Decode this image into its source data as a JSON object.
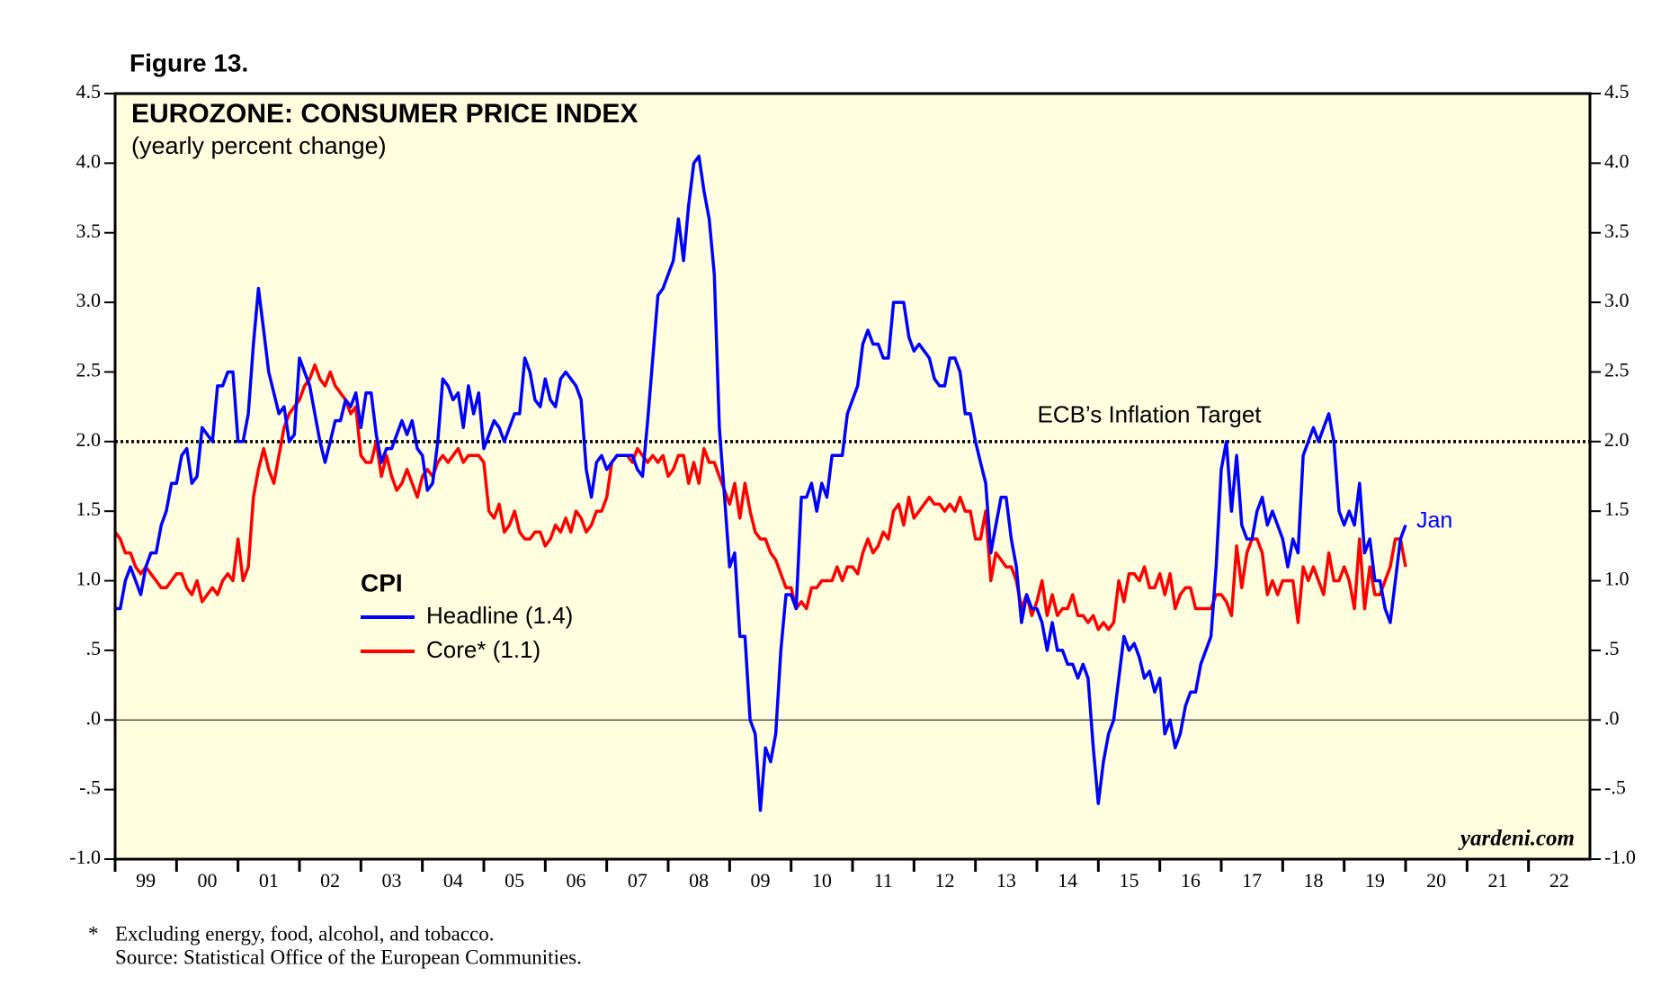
{
  "chart_data": {
    "type": "line",
    "figure_label": "Figure 13.",
    "title": "EUROZONE: CONSUMER PRICE INDEX",
    "subtitle": "(yearly percent change)",
    "legend_title": "CPI",
    "end_label": "Jan",
    "source_brand": "yardeni.com",
    "footnote_mark": "*",
    "footnotes": [
      "Excluding energy, food, alcohol, and tobacco.",
      "Source: Statistical Office of the European Communities."
    ],
    "target": {
      "value": 2,
      "label": "ECB’s Inflation Target"
    },
    "plot_background": "#ffffe0",
    "xlim": [
      1999,
      2023
    ],
    "xticks": [
      {
        "value": 1999,
        "label": "99"
      },
      {
        "value": 2000,
        "label": "00"
      },
      {
        "value": 2001,
        "label": "01"
      },
      {
        "value": 2002,
        "label": "02"
      },
      {
        "value": 2003,
        "label": "03"
      },
      {
        "value": 2004,
        "label": "04"
      },
      {
        "value": 2005,
        "label": "05"
      },
      {
        "value": 2006,
        "label": "06"
      },
      {
        "value": 2007,
        "label": "07"
      },
      {
        "value": 2008,
        "label": "08"
      },
      {
        "value": 2009,
        "label": "09"
      },
      {
        "value": 2010,
        "label": "10"
      },
      {
        "value": 2011,
        "label": "11"
      },
      {
        "value": 2012,
        "label": "12"
      },
      {
        "value": 2013,
        "label": "13"
      },
      {
        "value": 2014,
        "label": "14"
      },
      {
        "value": 2015,
        "label": "15"
      },
      {
        "value": 2016,
        "label": "16"
      },
      {
        "value": 2017,
        "label": "17"
      },
      {
        "value": 2018,
        "label": "18"
      },
      {
        "value": 2019,
        "label": "19"
      },
      {
        "value": 2020,
        "label": "20"
      },
      {
        "value": 2021,
        "label": "21"
      },
      {
        "value": 2022,
        "label": "22"
      }
    ],
    "ylim": [
      -1,
      4.5
    ],
    "yticks": [
      {
        "value": -1,
        "label": "-1.0"
      },
      {
        "value": -0.5,
        "label": "-.5"
      },
      {
        "value": 0,
        "label": ".0"
      },
      {
        "value": 0.5,
        "label": ".5"
      },
      {
        "value": 1,
        "label": "1.0"
      },
      1.5,
      {
        "value": 2,
        "label": "2.0"
      },
      2.5,
      {
        "value": 3,
        "label": "3.0"
      },
      3.5,
      {
        "value": 4,
        "label": "4.0"
      },
      4.5
    ],
    "x": [
      1999,
      1999.083,
      1999.167,
      1999.25,
      1999.333,
      1999.417,
      1999.5,
      1999.583,
      1999.667,
      1999.75,
      1999.833,
      1999.917,
      2000,
      2000.083,
      2000.167,
      2000.25,
      2000.333,
      2000.417,
      2000.5,
      2000.583,
      2000.667,
      2000.75,
      2000.833,
      2000.917,
      2001,
      2001.083,
      2001.167,
      2001.25,
      2001.333,
      2001.417,
      2001.5,
      2001.583,
      2001.667,
      2001.75,
      2001.833,
      2001.917,
      2002,
      2002.083,
      2002.167,
      2002.25,
      2002.333,
      2002.417,
      2002.5,
      2002.583,
      2002.667,
      2002.75,
      2002.833,
      2002.917,
      2003,
      2003.083,
      2003.167,
      2003.25,
      2003.333,
      2003.417,
      2003.5,
      2003.583,
      2003.667,
      2003.75,
      2003.833,
      2003.917,
      2004,
      2004.083,
      2004.167,
      2004.25,
      2004.333,
      2004.417,
      2004.5,
      2004.583,
      2004.667,
      2004.75,
      2004.833,
      2004.917,
      2005,
      2005.083,
      2005.167,
      2005.25,
      2005.333,
      2005.417,
      2005.5,
      2005.583,
      2005.667,
      2005.75,
      2005.833,
      2005.917,
      2006,
      2006.083,
      2006.167,
      2006.25,
      2006.333,
      2006.417,
      2006.5,
      2006.583,
      2006.667,
      2006.75,
      2006.833,
      2006.917,
      2007,
      2007.083,
      2007.167,
      2007.25,
      2007.333,
      2007.417,
      2007.5,
      2007.583,
      2007.667,
      2007.75,
      2007.833,
      2007.917,
      2008,
      2008.083,
      2008.167,
      2008.25,
      2008.333,
      2008.417,
      2008.5,
      2008.583,
      2008.667,
      2008.75,
      2008.833,
      2008.917,
      2009,
      2009.083,
      2009.167,
      2009.25,
      2009.333,
      2009.417,
      2009.5,
      2009.583,
      2009.667,
      2009.75,
      2009.833,
      2009.917,
      2010,
      2010.083,
      2010.167,
      2010.25,
      2010.333,
      2010.417,
      2010.5,
      2010.583,
      2010.667,
      2010.75,
      2010.833,
      2010.917,
      2011,
      2011.083,
      2011.167,
      2011.25,
      2011.333,
      2011.417,
      2011.5,
      2011.583,
      2011.667,
      2011.75,
      2011.833,
      2011.917,
      2012,
      2012.083,
      2012.167,
      2012.25,
      2012.333,
      2012.417,
      2012.5,
      2012.583,
      2012.667,
      2012.75,
      2012.833,
      2012.917,
      2013,
      2013.083,
      2013.167,
      2013.25,
      2013.333,
      2013.417,
      2013.5,
      2013.583,
      2013.667,
      2013.75,
      2013.833,
      2013.917,
      2014,
      2014.083,
      2014.167,
      2014.25,
      2014.333,
      2014.417,
      2014.5,
      2014.583,
      2014.667,
      2014.75,
      2014.833,
      2014.917,
      2015,
      2015.083,
      2015.167,
      2015.25,
      2015.333,
      2015.417,
      2015.5,
      2015.583,
      2015.667,
      2015.75,
      2015.833,
      2015.917,
      2016,
      2016.083,
      2016.167,
      2016.25,
      2016.333,
      2016.417,
      2016.5,
      2016.583,
      2016.667,
      2016.75,
      2016.833,
      2016.917,
      2017,
      2017.083,
      2017.167,
      2017.25,
      2017.333,
      2017.417,
      2017.5,
      2017.583,
      2017.667,
      2017.75,
      2017.833,
      2017.917,
      2018,
      2018.083,
      2018.167,
      2018.25,
      2018.333,
      2018.417,
      2018.5,
      2018.583,
      2018.667,
      2018.75,
      2018.833,
      2018.917,
      2019,
      2019.083,
      2019.167,
      2019.25,
      2019.333,
      2019.417,
      2019.5,
      2019.583,
      2019.667,
      2019.75,
      2019.833,
      2019.917,
      2020
    ],
    "series": [
      {
        "name": "Headline (1.4)",
        "color": "#0000ff",
        "values": [
          0.8,
          0.8,
          1.0,
          1.1,
          1.0,
          0.9,
          1.1,
          1.2,
          1.2,
          1.4,
          1.5,
          1.7,
          1.7,
          1.9,
          1.95,
          1.7,
          1.75,
          2.1,
          2.05,
          2.0,
          2.4,
          2.4,
          2.5,
          2.5,
          2.0,
          2.0,
          2.2,
          2.7,
          3.1,
          2.8,
          2.5,
          2.35,
          2.2,
          2.25,
          2.0,
          2.05,
          2.6,
          2.5,
          2.4,
          2.2,
          2.0,
          1.85,
          2.0,
          2.15,
          2.15,
          2.3,
          2.25,
          2.35,
          2.1,
          2.35,
          2.35,
          2.05,
          1.85,
          1.95,
          1.95,
          2.05,
          2.15,
          2.05,
          2.15,
          1.95,
          1.9,
          1.65,
          1.7,
          2.0,
          2.45,
          2.4,
          2.3,
          2.35,
          2.1,
          2.4,
          2.2,
          2.35,
          1.95,
          2.05,
          2.15,
          2.1,
          2.0,
          2.1,
          2.2,
          2.2,
          2.6,
          2.5,
          2.3,
          2.25,
          2.45,
          2.3,
          2.25,
          2.45,
          2.5,
          2.45,
          2.4,
          2.3,
          1.8,
          1.6,
          1.85,
          1.9,
          1.8,
          1.85,
          1.9,
          1.9,
          1.9,
          1.9,
          1.8,
          1.75,
          2.15,
          2.6,
          3.05,
          3.1,
          3.2,
          3.3,
          3.6,
          3.3,
          3.7,
          4.0,
          4.05,
          3.8,
          3.6,
          3.2,
          2.1,
          1.6,
          1.1,
          1.2,
          0.6,
          0.6,
          0.0,
          -0.1,
          -0.65,
          -0.2,
          -0.3,
          -0.1,
          0.5,
          0.9,
          0.9,
          0.8,
          1.6,
          1.6,
          1.7,
          1.5,
          1.7,
          1.6,
          1.9,
          1.9,
          1.9,
          2.2,
          2.3,
          2.4,
          2.7,
          2.8,
          2.7,
          2.7,
          2.6,
          2.6,
          3.0,
          3.0,
          3.0,
          2.75,
          2.65,
          2.7,
          2.65,
          2.6,
          2.45,
          2.4,
          2.4,
          2.6,
          2.6,
          2.5,
          2.2,
          2.2,
          2.0,
          1.85,
          1.7,
          1.2,
          1.4,
          1.6,
          1.6,
          1.3,
          1.1,
          0.7,
          0.9,
          0.8,
          0.8,
          0.7,
          0.5,
          0.7,
          0.5,
          0.5,
          0.4,
          0.4,
          0.3,
          0.4,
          0.3,
          -0.2,
          -0.6,
          -0.3,
          -0.1,
          0.0,
          0.3,
          0.6,
          0.5,
          0.55,
          0.45,
          0.3,
          0.35,
          0.2,
          0.3,
          -0.1,
          0.0,
          -0.2,
          -0.1,
          0.1,
          0.2,
          0.2,
          0.4,
          0.5,
          0.6,
          1.1,
          1.8,
          2.0,
          1.5,
          1.9,
          1.4,
          1.3,
          1.3,
          1.5,
          1.6,
          1.4,
          1.5,
          1.4,
          1.3,
          1.1,
          1.3,
          1.2,
          1.9,
          2.0,
          2.1,
          2.0,
          2.1,
          2.2,
          2.0,
          1.5,
          1.4,
          1.5,
          1.4,
          1.7,
          1.2,
          1.3,
          1.0,
          1.0,
          0.8,
          0.7,
          1.0,
          1.3,
          1.4
        ]
      },
      {
        "name": "Core* (1.1)",
        "color": "#ff0000",
        "values": [
          1.35,
          1.3,
          1.2,
          1.2,
          1.1,
          1.05,
          1.1,
          1.05,
          1.0,
          0.95,
          0.95,
          1.0,
          1.05,
          1.05,
          0.95,
          0.9,
          1.0,
          0.85,
          0.9,
          0.95,
          0.9,
          1.0,
          1.05,
          1.0,
          1.3,
          1.0,
          1.1,
          1.6,
          1.8,
          1.95,
          1.8,
          1.7,
          1.9,
          2.1,
          2.2,
          2.25,
          2.3,
          2.4,
          2.45,
          2.55,
          2.45,
          2.4,
          2.5,
          2.4,
          2.35,
          2.3,
          2.2,
          2.25,
          1.9,
          1.85,
          1.85,
          2.0,
          1.75,
          1.9,
          1.75,
          1.65,
          1.7,
          1.8,
          1.7,
          1.6,
          1.75,
          1.8,
          1.75,
          1.85,
          1.9,
          1.85,
          1.9,
          1.95,
          1.85,
          1.9,
          1.9,
          1.9,
          1.85,
          1.5,
          1.45,
          1.55,
          1.35,
          1.4,
          1.5,
          1.35,
          1.3,
          1.3,
          1.35,
          1.35,
          1.25,
          1.3,
          1.4,
          1.35,
          1.45,
          1.35,
          1.5,
          1.45,
          1.35,
          1.4,
          1.5,
          1.5,
          1.6,
          1.85,
          1.9,
          1.9,
          1.9,
          1.85,
          1.95,
          1.9,
          1.85,
          1.9,
          1.85,
          1.9,
          1.75,
          1.8,
          1.9,
          1.9,
          1.7,
          1.85,
          1.7,
          1.95,
          1.85,
          1.85,
          1.75,
          1.65,
          1.55,
          1.7,
          1.45,
          1.7,
          1.5,
          1.35,
          1.3,
          1.3,
          1.2,
          1.15,
          1.05,
          0.95,
          0.95,
          0.8,
          0.85,
          0.8,
          0.95,
          0.95,
          1.0,
          1.0,
          1.0,
          1.1,
          1.0,
          1.1,
          1.1,
          1.05,
          1.2,
          1.3,
          1.2,
          1.25,
          1.35,
          1.3,
          1.5,
          1.55,
          1.4,
          1.6,
          1.45,
          1.5,
          1.55,
          1.6,
          1.55,
          1.55,
          1.5,
          1.55,
          1.5,
          1.6,
          1.5,
          1.5,
          1.3,
          1.3,
          1.5,
          1.0,
          1.2,
          1.15,
          1.1,
          1.1,
          1.0,
          0.8,
          0.9,
          0.75,
          0.85,
          1.0,
          0.75,
          0.9,
          0.75,
          0.8,
          0.8,
          0.9,
          0.75,
          0.75,
          0.7,
          0.75,
          0.65,
          0.7,
          0.65,
          0.7,
          1.0,
          0.85,
          1.05,
          1.05,
          1.0,
          1.1,
          0.95,
          0.95,
          1.05,
          0.9,
          1.05,
          0.8,
          0.9,
          0.95,
          0.95,
          0.8,
          0.8,
          0.8,
          0.8,
          0.9,
          0.9,
          0.85,
          0.75,
          1.25,
          0.95,
          1.2,
          1.3,
          1.3,
          1.2,
          0.9,
          1.0,
          0.9,
          1.0,
          1.0,
          1.0,
          0.7,
          1.1,
          1.0,
          1.1,
          1.0,
          0.9,
          1.2,
          1.0,
          1.0,
          1.1,
          1.0,
          0.8,
          1.3,
          0.8,
          1.1,
          0.9,
          0.9,
          1.0,
          1.1,
          1.3,
          1.3,
          1.1
        ]
      }
    ]
  }
}
